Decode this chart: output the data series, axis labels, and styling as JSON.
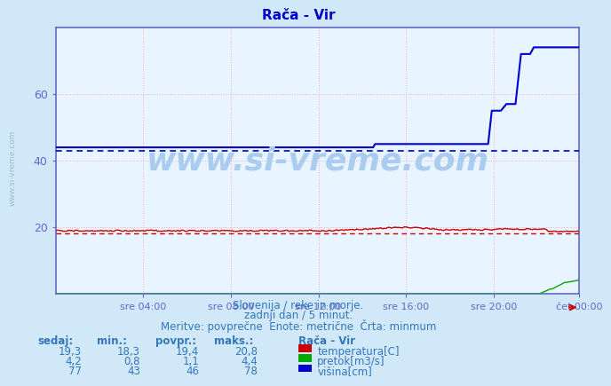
{
  "title": "Rača - Vir",
  "bg_color": "#d0e8f8",
  "plot_bg_color": "#e8f4ff",
  "grid_color_h": "#ffaaaa",
  "grid_color_v": "#ffaaaa",
  "axis_color": "#6666cc",
  "title_color": "#0000cc",
  "text_color": "#3377bb",
  "ylim": [
    0,
    80
  ],
  "yticks": [
    20,
    40,
    60
  ],
  "xlabel_times": [
    "sre 04:00",
    "sre 08:00",
    "sre 12:00",
    "sre 16:00",
    "sre 20:00",
    "čet 00:00"
  ],
  "n_points": 288,
  "temp_min": 18.3,
  "height_min": 43,
  "watermark": "www.si-vreme.com",
  "watermark_color": "#aaccee",
  "subtitle1": "Slovenija / reke in morje.",
  "subtitle2": "zadnji dan / 5 minut.",
  "subtitle3": "Meritve: povprečne  Enote: metrične  Črta: minmum",
  "legend_title": "Rača - Vir",
  "legend_labels": [
    "temperatura[C]",
    "pretok[m3/s]",
    "višina[cm]"
  ],
  "legend_colors": [
    "#cc0000",
    "#00aa00",
    "#0000cc"
  ],
  "table_headers": [
    "sedaj:",
    "min.:",
    "povpr.:",
    "maks.:"
  ],
  "table_rows": [
    [
      "19,3",
      "18,3",
      "19,4",
      "20,8"
    ],
    [
      "4,2",
      "0,8",
      "1,1",
      "4,4"
    ],
    [
      "77",
      "43",
      "46",
      "78"
    ]
  ],
  "xtick_positions": [
    48,
    96,
    144,
    192,
    240,
    287
  ]
}
